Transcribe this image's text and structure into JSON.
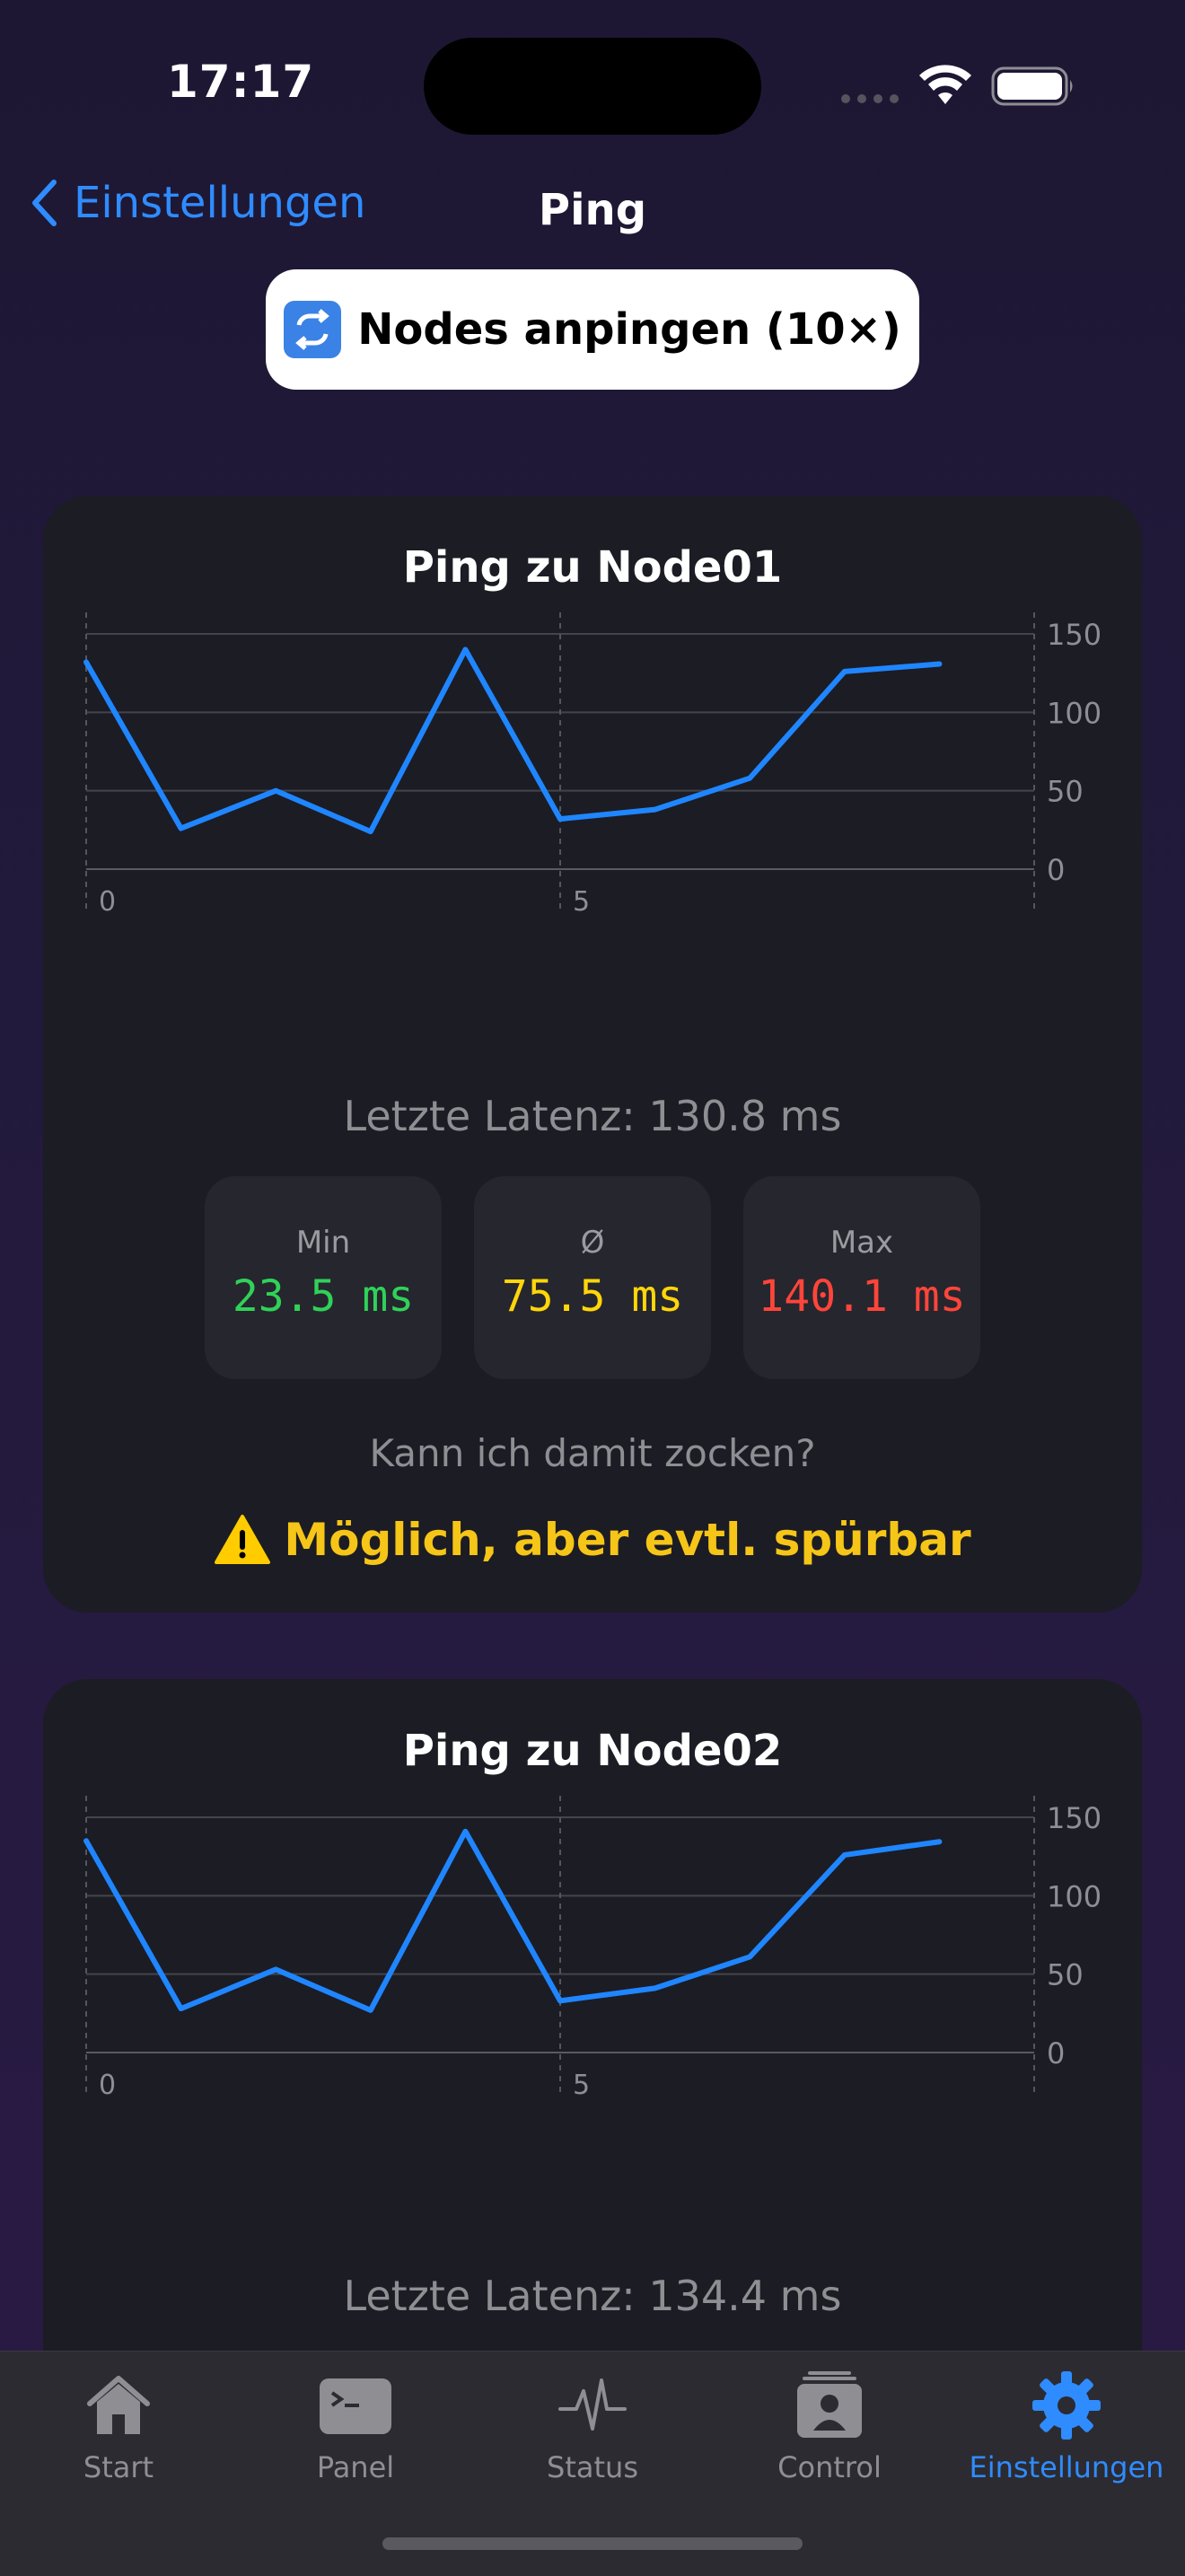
{
  "status_bar": {
    "time": "17:17"
  },
  "nav": {
    "back_label": "Einstellungen",
    "title": "Ping"
  },
  "action_button": {
    "emoji": "🔁",
    "label": "Nodes anpingen (10×)"
  },
  "colors": {
    "accent": "#2f8cff",
    "line": "#1f86ff",
    "min": "#30d158",
    "avg": "#ffd60a",
    "max": "#ff453a",
    "verdict": "#f5c518"
  },
  "cards": [
    {
      "title": "Ping zu Node01",
      "latency_text": "Letzte Latenz: 130.8 ms",
      "stats": {
        "min_label": "Min",
        "min_value": "23.5 ms",
        "avg_label": "Ø",
        "avg_value": "75.5 ms",
        "max_label": "Max",
        "max_value": "140.1 ms"
      },
      "question": "Kann ich damit zocken?",
      "verdict_icon": "warning-icon",
      "verdict": "Möglich, aber evtl. spürbar"
    },
    {
      "title": "Ping zu Node02",
      "latency_text": "Letzte Latenz: 134.4 ms"
    }
  ],
  "chart_data": [
    {
      "type": "line",
      "x": [
        0,
        1,
        2,
        3,
        4,
        5,
        6,
        7,
        8,
        9
      ],
      "values": [
        132,
        26,
        50,
        24,
        140,
        32,
        38,
        58,
        126,
        130.8
      ],
      "xticks": [
        "0",
        "5"
      ],
      "yticks": [
        "0",
        "50",
        "100",
        "150"
      ],
      "ylim": [
        0,
        150
      ],
      "xlim": [
        0,
        10
      ],
      "grid": true
    },
    {
      "type": "line",
      "x": [
        0,
        1,
        2,
        3,
        4,
        5,
        6,
        7,
        8,
        9
      ],
      "values": [
        135,
        28,
        53,
        27,
        141,
        33,
        41,
        61,
        126,
        134.4
      ],
      "xticks": [
        "0",
        "5"
      ],
      "yticks": [
        "0",
        "50",
        "100",
        "150"
      ],
      "ylim": [
        0,
        150
      ],
      "xlim": [
        0,
        10
      ],
      "grid": true
    }
  ],
  "tabs": [
    {
      "label": "Start",
      "icon": "house-icon",
      "active": false
    },
    {
      "label": "Panel",
      "icon": "terminal-icon",
      "active": false
    },
    {
      "label": "Status",
      "icon": "waveform-icon",
      "active": false
    },
    {
      "label": "Control",
      "icon": "person-card-icon",
      "active": false
    },
    {
      "label": "Einstellungen",
      "icon": "gear-icon",
      "active": true
    }
  ]
}
